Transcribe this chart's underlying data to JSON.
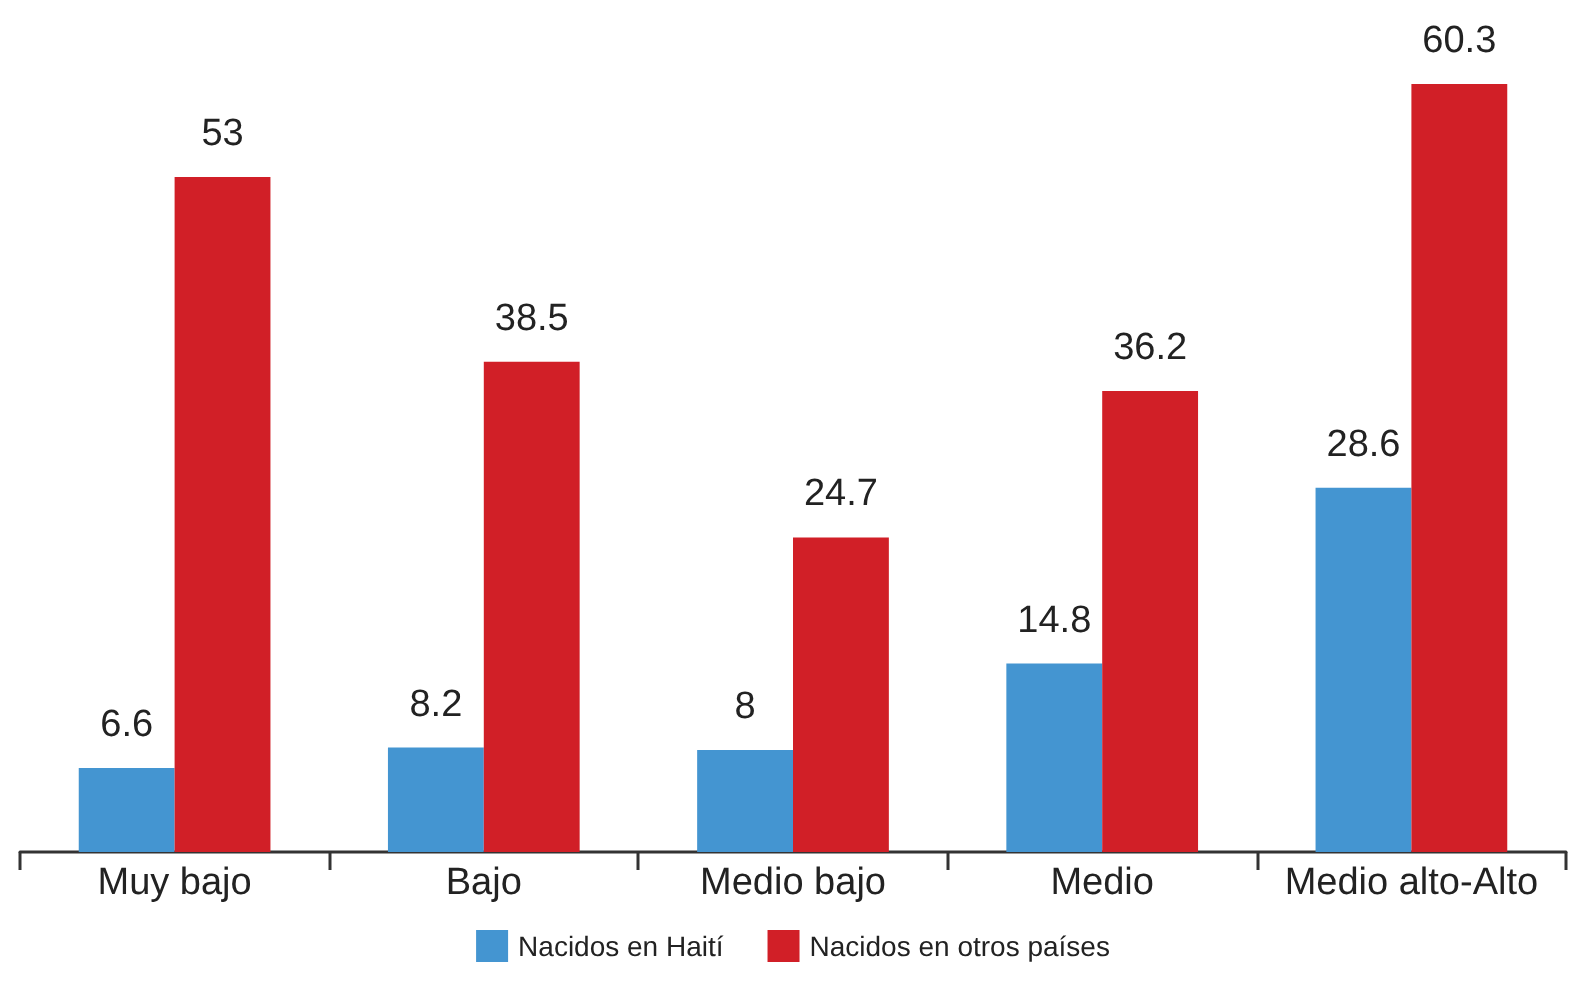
{
  "chart_data": {
    "type": "bar",
    "categories": [
      "Muy bajo",
      "Bajo",
      "Medio bajo",
      "Medio",
      "Medio alto-Alto"
    ],
    "series": [
      {
        "name": "Nacidos en Haití",
        "color": "#4495d1",
        "values": [
          6.6,
          8.2,
          8,
          14.8,
          28.6
        ]
      },
      {
        "name": "Nacidos en otros países",
        "color": "#d11f27",
        "values": [
          53,
          38.5,
          24.7,
          36.2,
          60.3
        ]
      }
    ],
    "data_labels": true,
    "legend": "bottom",
    "grid": false,
    "tick_labels": "x"
  }
}
